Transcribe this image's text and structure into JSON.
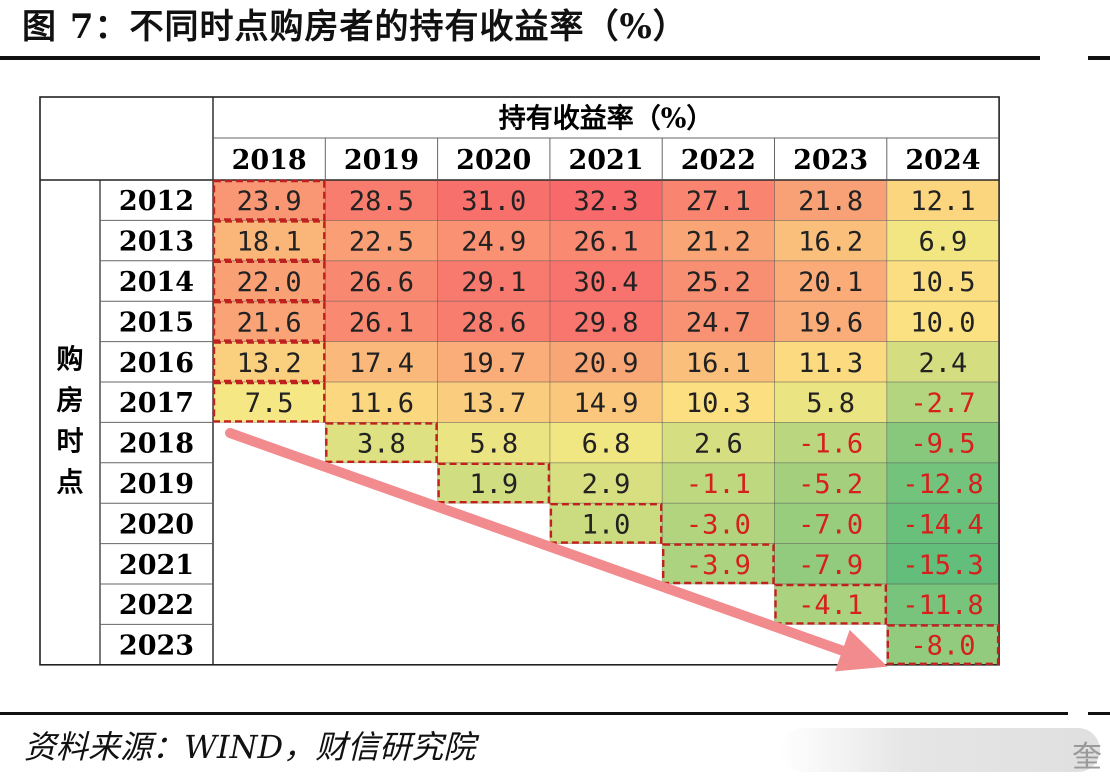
{
  "figure": {
    "title": "图 7：不同时点购房者的持有收益率（%）",
    "source": "资料来源：WIND，财信研究院",
    "watermark_glyph": "奎"
  },
  "chart_data": {
    "type": "table",
    "title": "持有收益率（%）",
    "row_header": "购房时点",
    "columns": [
      "2018",
      "2019",
      "2020",
      "2021",
      "2022",
      "2023",
      "2024"
    ],
    "rows": [
      "2012",
      "2013",
      "2014",
      "2015",
      "2016",
      "2017",
      "2018",
      "2019",
      "2020",
      "2021",
      "2022",
      "2023"
    ],
    "values": [
      [
        "23.9",
        "28.5",
        "31.0",
        "32.3",
        "27.1",
        "21.8",
        "12.1"
      ],
      [
        "18.1",
        "22.5",
        "24.9",
        "26.1",
        "21.2",
        "16.2",
        "6.9"
      ],
      [
        "22.0",
        "26.6",
        "29.1",
        "30.4",
        "25.2",
        "20.1",
        "10.5"
      ],
      [
        "21.6",
        "26.1",
        "28.6",
        "29.8",
        "24.7",
        "19.6",
        "10.0"
      ],
      [
        "13.2",
        "17.4",
        "19.7",
        "20.9",
        "16.1",
        "11.3",
        "2.4"
      ],
      [
        "7.5",
        "11.6",
        "13.7",
        "14.9",
        "10.3",
        "5.8",
        "-2.7"
      ],
      [
        null,
        "3.8",
        "5.8",
        "6.8",
        "2.6",
        "-1.6",
        "-9.5"
      ],
      [
        null,
        null,
        "1.9",
        "2.9",
        "-1.1",
        "-5.2",
        "-12.8"
      ],
      [
        null,
        null,
        null,
        "1.0",
        "-3.0",
        "-7.0",
        "-14.4"
      ],
      [
        null,
        null,
        null,
        null,
        "-3.9",
        "-7.9",
        "-15.3"
      ],
      [
        null,
        null,
        null,
        null,
        null,
        "-4.1",
        "-11.8"
      ],
      [
        null,
        null,
        null,
        null,
        null,
        null,
        "-8.0"
      ]
    ],
    "color_scale": {
      "type": "heatmap",
      "stops": [
        {
          "value": -15.3,
          "color": "#63be7b"
        },
        {
          "value": 8.5,
          "color": "#fbe983"
        },
        {
          "value": 32.3,
          "color": "#f8696b"
        }
      ]
    },
    "negative_text_color": "#d6201c",
    "positive_text_color": "#222222",
    "highlight_border_color": "#c0201e",
    "arrow_color": "#f28b8e"
  }
}
